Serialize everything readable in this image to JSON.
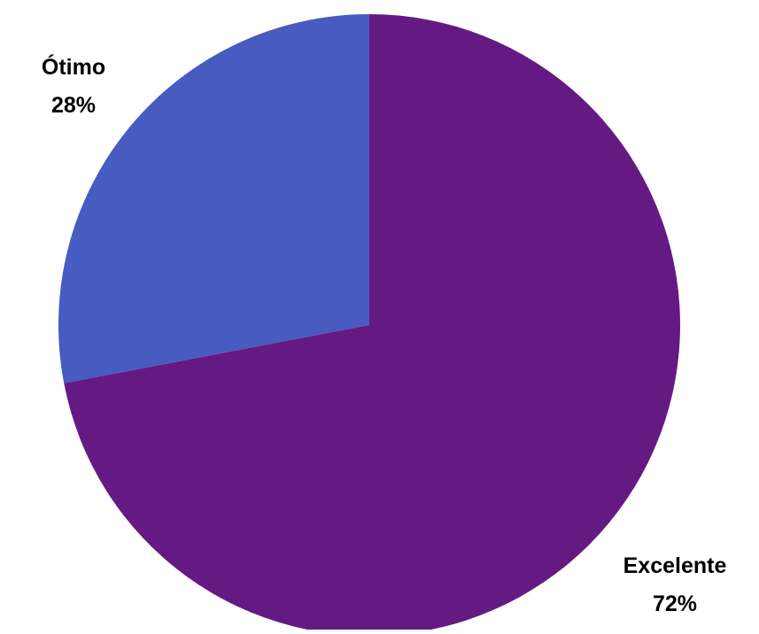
{
  "chart_data": {
    "type": "pie",
    "title": "",
    "start_angle_deg": 0,
    "direction": "clockwise",
    "slices": [
      {
        "label": "Excelente",
        "value": 72,
        "value_label": "72%",
        "color": "#651a83"
      },
      {
        "label": "Ótimo",
        "value": 28,
        "value_label": "28%",
        "color": "#475bc0"
      }
    ]
  }
}
